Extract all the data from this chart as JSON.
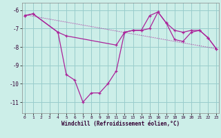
{
  "line_main_x": [
    0,
    1,
    4,
    5,
    6,
    7,
    8,
    9,
    10,
    11,
    12,
    13,
    14,
    15,
    16,
    17,
    18,
    19,
    20,
    21,
    22,
    23
  ],
  "line_main_y": [
    -6.3,
    -6.2,
    -7.2,
    -9.5,
    -9.8,
    -11.0,
    -10.5,
    -10.5,
    -10.0,
    -9.3,
    -7.2,
    -7.1,
    -7.1,
    -6.3,
    -6.1,
    -6.7,
    -7.1,
    -7.2,
    -7.1,
    -7.1,
    -7.5,
    -8.1
  ],
  "line_smooth_x": [
    0,
    1,
    4,
    5,
    11,
    12,
    13,
    14,
    15,
    16,
    17,
    18,
    19,
    20,
    21,
    22,
    23
  ],
  "line_smooth_y": [
    -6.3,
    -6.2,
    -7.2,
    -7.4,
    -7.9,
    -7.2,
    -7.1,
    -7.1,
    -7.0,
    -6.1,
    -6.7,
    -7.6,
    -7.7,
    -7.2,
    -7.1,
    -7.5,
    -8.1
  ],
  "trend_x": [
    0,
    23
  ],
  "trend_y": [
    -6.25,
    -8.1
  ],
  "line_color": "#aa2299",
  "bg_color": "#cceee8",
  "grid_color": "#99cccc",
  "xlabel": "Windchill (Refroidissement éolien,°C)",
  "yticks": [
    -6,
    -7,
    -8,
    -9,
    -10,
    -11
  ],
  "xticks": [
    0,
    1,
    2,
    3,
    4,
    5,
    6,
    7,
    8,
    9,
    10,
    11,
    12,
    13,
    14,
    15,
    16,
    17,
    18,
    19,
    20,
    21,
    22,
    23
  ],
  "ylim": [
    -11.6,
    -5.6
  ],
  "xlim": [
    -0.3,
    23.3
  ]
}
